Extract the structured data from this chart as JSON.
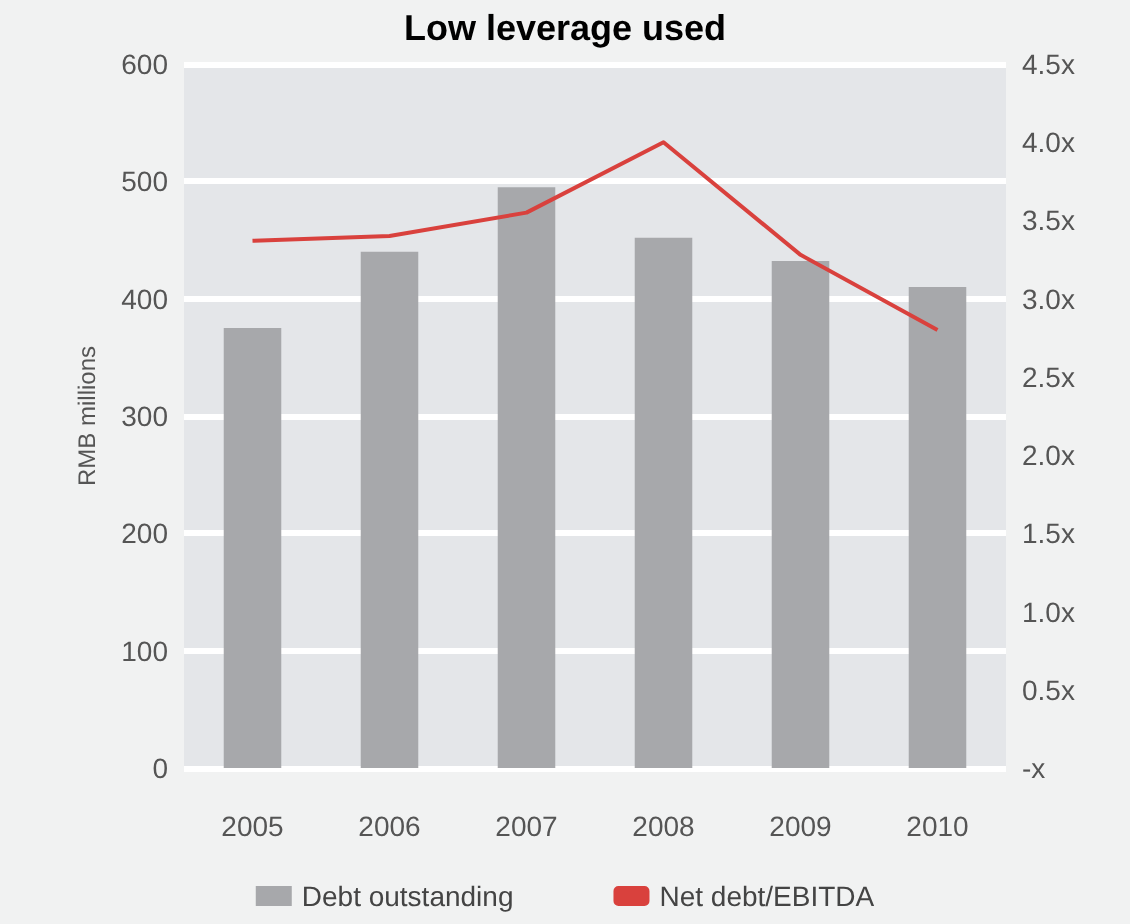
{
  "chart_data": {
    "type": "bar",
    "title": "Low leverage used",
    "ylabel": "RMB millions",
    "categories": [
      "2005",
      "2006",
      "2007",
      "2008",
      "2009",
      "2010"
    ],
    "series": [
      {
        "name": "Debt outstanding",
        "color": "#a7a8ab",
        "values": [
          375,
          440,
          495,
          452,
          432,
          410
        ]
      },
      {
        "name": "Net debt/EBITDA",
        "type": "line",
        "axis": "y2",
        "color": "#d9413d",
        "values": [
          3.37,
          3.4,
          3.55,
          4.0,
          3.28,
          2.8
        ]
      }
    ],
    "ylim": [
      0,
      600
    ],
    "yticks": [
      0,
      100,
      200,
      300,
      400,
      500,
      600
    ],
    "y2lim": [
      0,
      4.5
    ],
    "y2ticks": [
      {
        "value": 0,
        "label": "-x"
      },
      {
        "value": 0.5,
        "label": "0.5x"
      },
      {
        "value": 1,
        "label": "1.0x"
      },
      {
        "value": 1.5,
        "label": "1.5x"
      },
      {
        "value": 2,
        "label": "2.0x"
      },
      {
        "value": 2.5,
        "label": "2.5x"
      },
      {
        "value": 3,
        "label": "3.0x"
      },
      {
        "value": 3.5,
        "label": "3.5x"
      },
      {
        "value": 4,
        "label": "4.0x"
      },
      {
        "value": 4.5,
        "label": "4.5x"
      }
    ],
    "grid": "y",
    "legend": "bottom",
    "marker": "none"
  }
}
